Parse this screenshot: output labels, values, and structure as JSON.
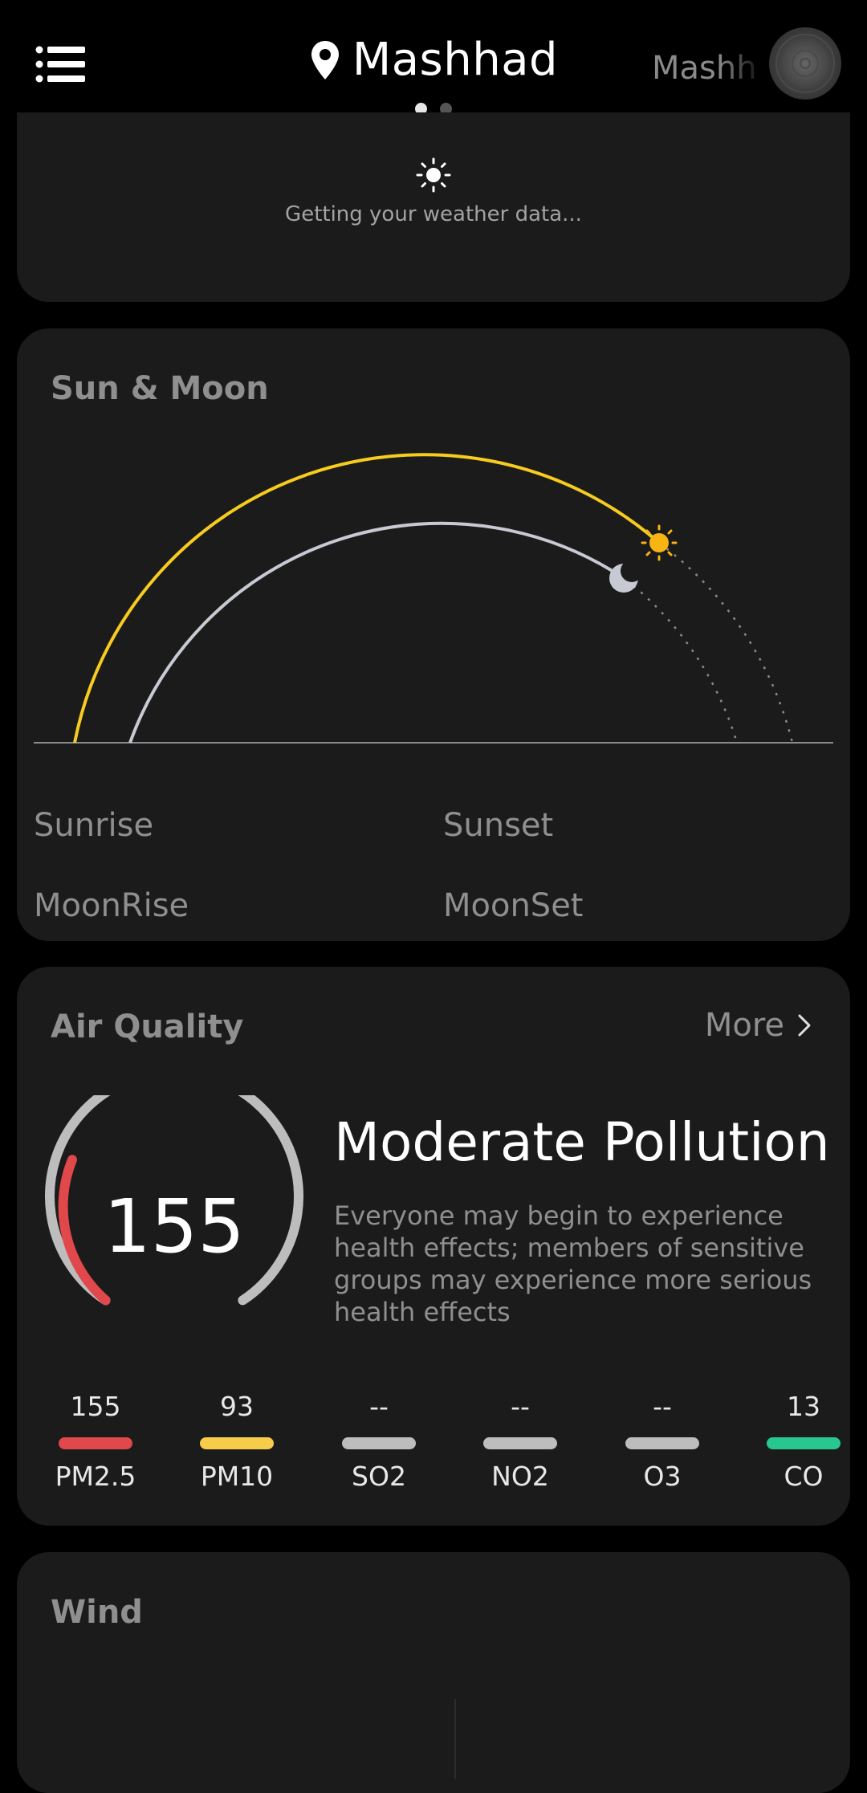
{
  "header": {
    "location": "Mashhad",
    "next_location": "Mashh",
    "page_dots": 2,
    "active_dot": 0
  },
  "loading": {
    "text": "Getting your weather data..."
  },
  "sun_moon": {
    "title": "Sun & Moon",
    "sunrise_label": "Sunrise",
    "sunset_label": "Sunset",
    "moonrise_label": "MoonRise",
    "moonset_label": "MoonSet",
    "sun_progress": 0.74,
    "moon_progress": 0.73,
    "colors": {
      "sun": "#f7cc1e",
      "moon": "#c7c9d3"
    }
  },
  "air_quality": {
    "title": "Air Quality",
    "more_label": "More",
    "aqi": "155",
    "aqi_fraction": 0.31,
    "status": "Moderate Pollution",
    "description": "Everyone may begin to experience health effects; members of sensitive groups may experience more serious health effects",
    "pollutants": [
      {
        "name": "PM2.5",
        "value": "155",
        "color": "#e0484b"
      },
      {
        "name": "PM10",
        "value": "93",
        "color": "#f7cc4a"
      },
      {
        "name": "SO2",
        "value": "--",
        "color": "#bdbdbd"
      },
      {
        "name": "NO2",
        "value": "--",
        "color": "#bdbdbd"
      },
      {
        "name": "O3",
        "value": "--",
        "color": "#bdbdbd"
      },
      {
        "name": "CO",
        "value": "13",
        "color": "#28c78f"
      }
    ]
  },
  "wind": {
    "title": "Wind"
  }
}
